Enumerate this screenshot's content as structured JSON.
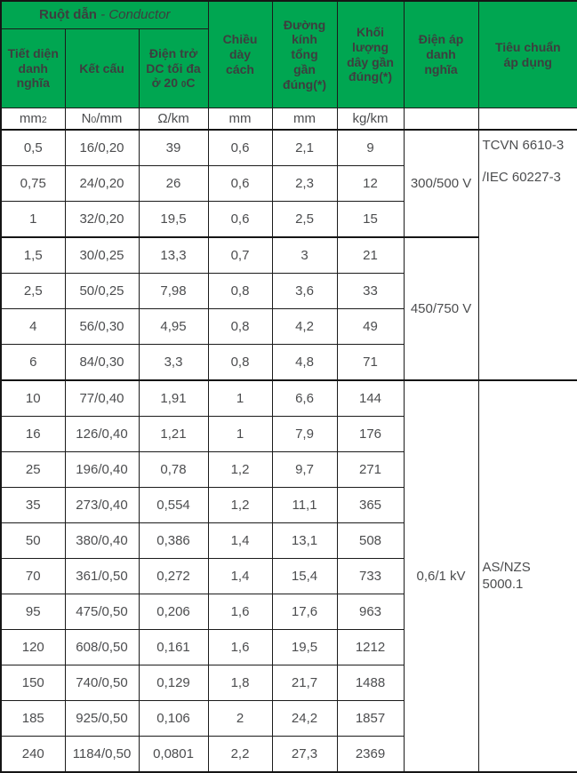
{
  "colors": {
    "header_green": "#00a651",
    "border": "#151515",
    "header_text": "#3d3e3f",
    "body_text": "#4c4d4f"
  },
  "table": {
    "conductor_header": {
      "title": "Ruột dẫn",
      "subtitle": "- Conductor"
    },
    "columns": {
      "area": "Tiết diện\ndanh\nnghĩa",
      "structure": "Kết cấu",
      "resistance_lines": [
        "Điện trở",
        "DC tối đa"
      ],
      "resistance_temp": {
        "pre": "ở 20 ",
        "sub": "0",
        "post": "C"
      },
      "thickness": "Chiều\ndày\ncách",
      "diameter": "Đường\nkính\ntổng\ngần\nđúng(*)",
      "weight": "Khối\nlượng\ndây gần\nđúng(*)",
      "voltage": "Điện áp\ndanh\nnghĩa",
      "standard": "Tiêu chuẩn\náp dụng"
    },
    "units": {
      "area": {
        "base": "mm",
        "sub": "2"
      },
      "structure": {
        "pre": "N",
        "sub": "0",
        "post": "/mm"
      },
      "resistance": "Ω/km",
      "thickness": "mm",
      "diameter": "mm",
      "weight": "kg/km"
    },
    "column_keys": [
      "area",
      "structure",
      "resistance",
      "thickness",
      "diameter",
      "weight"
    ],
    "rows": [
      [
        "0,5",
        "16/0,20",
        "39",
        "0,6",
        "2,1",
        "9"
      ],
      [
        "0,75",
        "24/0,20",
        "26",
        "0,6",
        "2,3",
        "12"
      ],
      [
        "1",
        "32/0,20",
        "19,5",
        "0,6",
        "2,5",
        "15"
      ],
      [
        "1,5",
        "30/0,25",
        "13,3",
        "0,7",
        "3",
        "21"
      ],
      [
        "2,5",
        "50/0,25",
        "7,98",
        "0,8",
        "3,6",
        "33"
      ],
      [
        "4",
        "56/0,30",
        "4,95",
        "0,8",
        "4,2",
        "49"
      ],
      [
        "6",
        "84/0,30",
        "3,3",
        "0,8",
        "4,8",
        "71"
      ],
      [
        "10",
        "77/0,40",
        "1,91",
        "1",
        "6,6",
        "144"
      ],
      [
        "16",
        "126/0,40",
        "1,21",
        "1",
        "7,9",
        "176"
      ],
      [
        "25",
        "196/0,40",
        "0,78",
        "1,2",
        "9,7",
        "271"
      ],
      [
        "35",
        "273/0,40",
        "0,554",
        "1,2",
        "11,1",
        "365"
      ],
      [
        "50",
        "380/0,40",
        "0,386",
        "1,4",
        "13,1",
        "508"
      ],
      [
        "70",
        "361/0,50",
        "0,272",
        "1,4",
        "15,4",
        "733"
      ],
      [
        "95",
        "475/0,50",
        "0,206",
        "1,6",
        "17,6",
        "963"
      ],
      [
        "120",
        "608/0,50",
        "0,161",
        "1,6",
        "19,5",
        "1212"
      ],
      [
        "150",
        "740/0,50",
        "0,129",
        "1,8",
        "21,7",
        "1488"
      ],
      [
        "185",
        "925/0,50",
        "0,106",
        "2",
        "24,2",
        "1857"
      ],
      [
        "240",
        "1184/0,50",
        "0,0801",
        "2,2",
        "27,3",
        "2369"
      ]
    ],
    "voltage_groups": [
      {
        "label": "300/500 V",
        "start": 0,
        "span": 3
      },
      {
        "label": "450/750 V",
        "start": 3,
        "span": 4
      },
      {
        "label": "0,6/1 kV",
        "start": 7,
        "span": 11
      }
    ],
    "standard_groups": [
      {
        "lines": [
          "TCVN 6610-3",
          "/IEC 60227-3"
        ],
        "start": 0,
        "span": 7,
        "align": "top"
      },
      {
        "lines": [
          "AS/NZS",
          "5000.1"
        ],
        "start": 7,
        "span": 11,
        "align": "middle"
      }
    ],
    "group_breaks": [
      3,
      7
    ]
  }
}
